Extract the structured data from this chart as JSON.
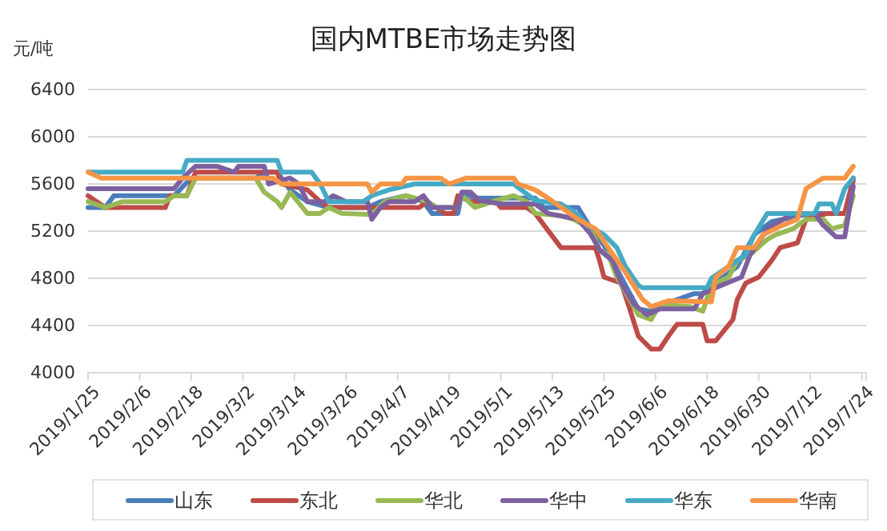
{
  "chart_data": {
    "type": "line",
    "title": "国内MTBE市场走势图",
    "ylabel": "元/吨",
    "ylim": [
      4000,
      6400
    ],
    "yticks": [
      4000,
      4400,
      4800,
      5200,
      5600,
      6000,
      6400
    ],
    "xlim": [
      "2019-01-25",
      "2019-07-25"
    ],
    "xticks": [
      {
        "value": "2019-01-25",
        "label": "2019/1/25"
      },
      {
        "value": "2019-02-06",
        "label": "2019/2/6"
      },
      {
        "value": "2019-02-18",
        "label": "2019/2/18"
      },
      {
        "value": "2019-03-02",
        "label": "2019/3/2"
      },
      {
        "value": "2019-03-14",
        "label": "2019/3/14"
      },
      {
        "value": "2019-03-26",
        "label": "2019/3/26"
      },
      {
        "value": "2019-04-07",
        "label": "2019/4/7"
      },
      {
        "value": "2019-04-19",
        "label": "2019/4/19"
      },
      {
        "value": "2019-05-01",
        "label": "2019/5/1"
      },
      {
        "value": "2019-05-13",
        "label": "2019/5/13"
      },
      {
        "value": "2019-05-25",
        "label": "2019/5/25"
      },
      {
        "value": "2019-06-06",
        "label": "2019/6/6"
      },
      {
        "value": "2019-06-18",
        "label": "2019/6/18"
      },
      {
        "value": "2019-06-30",
        "label": "2019/6/30"
      },
      {
        "value": "2019-07-12",
        "label": "2019/7/12"
      },
      {
        "value": "2019-07-24",
        "label": "2019/7/24"
      }
    ],
    "grid": "y",
    "legend": "bottom",
    "marker": "none",
    "line_style": "solid",
    "series": [
      {
        "name": "山东",
        "color": "#4a7ebb",
        "x": [
          "2019-01-25",
          "2019-01-29",
          "2019-01-31",
          "2019-02-14",
          "2019-02-18",
          "2019-03-05",
          "2019-03-07",
          "2019-03-10",
          "2019-03-13",
          "2019-03-17",
          "2019-03-22",
          "2019-03-31",
          "2019-04-03",
          "2019-04-09",
          "2019-04-13",
          "2019-04-15",
          "2019-04-21",
          "2019-04-22",
          "2019-04-25",
          "2019-05-09",
          "2019-05-11",
          "2019-05-19",
          "2019-05-22",
          "2019-05-25",
          "2019-05-27",
          "2019-05-30",
          "2019-06-02",
          "2019-06-05",
          "2019-06-08",
          "2019-06-15",
          "2019-06-17",
          "2019-06-20",
          "2019-06-25",
          "2019-06-29",
          "2019-07-03",
          "2019-07-12",
          "2019-07-20",
          "2019-07-22"
        ],
        "values": [
          5400,
          5400,
          5500,
          5500,
          5650,
          5650,
          5700,
          5700,
          5550,
          5450,
          5400,
          5400,
          5450,
          5500,
          5450,
          5350,
          5350,
          5530,
          5480,
          5480,
          5400,
          5400,
          5220,
          5080,
          4950,
          4740,
          4540,
          4520,
          4580,
          4670,
          4670,
          4760,
          4900,
          5170,
          5280,
          5350,
          5350,
          5650
        ]
      },
      {
        "name": "东北",
        "color": "#be4b48",
        "x": [
          "2019-01-25",
          "2019-01-29",
          "2019-02-12",
          "2019-02-13",
          "2019-02-17",
          "2019-02-19",
          "2019-03-10",
          "2019-03-11",
          "2019-03-17",
          "2019-03-20",
          "2019-03-22",
          "2019-04-12",
          "2019-04-14",
          "2019-04-18",
          "2019-04-20",
          "2019-04-21",
          "2019-04-24",
          "2019-04-30",
          "2019-05-01",
          "2019-05-07",
          "2019-05-09",
          "2019-05-15",
          "2019-05-23",
          "2019-05-24",
          "2019-05-25",
          "2019-05-29",
          "2019-05-31",
          "2019-06-02",
          "2019-06-05",
          "2019-06-07",
          "2019-06-09",
          "2019-06-11",
          "2019-06-17",
          "2019-06-18",
          "2019-06-20",
          "2019-06-22",
          "2019-06-24",
          "2019-06-25",
          "2019-06-27",
          "2019-06-30",
          "2019-07-03",
          "2019-07-05",
          "2019-07-09",
          "2019-07-11",
          "2019-07-16",
          "2019-07-20",
          "2019-07-22"
        ],
        "values": [
          5500,
          5400,
          5400,
          5500,
          5500,
          5700,
          5700,
          5600,
          5550,
          5450,
          5400,
          5400,
          5450,
          5350,
          5350,
          5500,
          5450,
          5450,
          5400,
          5400,
          5350,
          5060,
          5060,
          4950,
          4810,
          4760,
          4540,
          4310,
          4200,
          4200,
          4310,
          4410,
          4410,
          4270,
          4270,
          4360,
          4450,
          4620,
          4760,
          4810,
          4950,
          5060,
          5100,
          5300,
          5350,
          5350,
          5630
        ]
      },
      {
        "name": "华北",
        "color": "#98b954",
        "x": [
          "2019-01-25",
          "2019-01-29",
          "2019-02-02",
          "2019-02-12",
          "2019-02-14",
          "2019-02-17",
          "2019-02-19",
          "2019-03-05",
          "2019-03-07",
          "2019-03-10",
          "2019-03-11",
          "2019-03-13",
          "2019-03-17",
          "2019-03-20",
          "2019-03-22",
          "2019-03-25",
          "2019-04-01",
          "2019-04-04",
          "2019-04-09",
          "2019-04-14",
          "2019-04-16",
          "2019-04-21",
          "2019-04-22",
          "2019-04-25",
          "2019-04-30",
          "2019-05-04",
          "2019-05-07",
          "2019-05-09",
          "2019-05-15",
          "2019-05-18",
          "2019-05-22",
          "2019-05-24",
          "2019-05-26",
          "2019-05-28",
          "2019-05-31",
          "2019-06-02",
          "2019-06-05",
          "2019-06-07",
          "2019-06-14",
          "2019-06-17",
          "2019-06-19",
          "2019-06-23",
          "2019-06-25",
          "2019-06-28",
          "2019-07-02",
          "2019-07-04",
          "2019-07-08",
          "2019-07-11",
          "2019-07-15",
          "2019-07-17",
          "2019-07-20",
          "2019-07-22"
        ],
        "values": [
          5450,
          5400,
          5450,
          5450,
          5500,
          5500,
          5650,
          5650,
          5530,
          5450,
          5400,
          5530,
          5350,
          5350,
          5400,
          5350,
          5340,
          5450,
          5500,
          5450,
          5400,
          5400,
          5500,
          5400,
          5460,
          5500,
          5450,
          5350,
          5330,
          5300,
          5220,
          5040,
          5000,
          4810,
          4620,
          4490,
          4450,
          4580,
          4560,
          4520,
          4740,
          4810,
          4950,
          5000,
          5130,
          5170,
          5220,
          5300,
          5300,
          5220,
          5250,
          5500
        ]
      },
      {
        "name": "华中",
        "color": "#7d60a0",
        "x": [
          "2019-01-25",
          "2019-02-14",
          "2019-02-16",
          "2019-02-19",
          "2019-02-24",
          "2019-02-28",
          "2019-03-01",
          "2019-03-07",
          "2019-03-08",
          "2019-03-13",
          "2019-03-15",
          "2019-03-17",
          "2019-03-21",
          "2019-03-23",
          "2019-03-26",
          "2019-03-31",
          "2019-04-01",
          "2019-04-03",
          "2019-04-05",
          "2019-04-11",
          "2019-04-13",
          "2019-04-14",
          "2019-04-15",
          "2019-04-21",
          "2019-04-22",
          "2019-04-24",
          "2019-04-26",
          "2019-05-01",
          "2019-05-09",
          "2019-05-12",
          "2019-05-19",
          "2019-05-22",
          "2019-05-24",
          "2019-05-27",
          "2019-05-29",
          "2019-06-01",
          "2019-06-04",
          "2019-06-07",
          "2019-06-15",
          "2019-06-17",
          "2019-06-20",
          "2019-06-26",
          "2019-06-28",
          "2019-07-02",
          "2019-07-08",
          "2019-07-13",
          "2019-07-15",
          "2019-07-18",
          "2019-07-20",
          "2019-07-22"
        ],
        "values": [
          5560,
          5560,
          5650,
          5750,
          5750,
          5700,
          5750,
          5750,
          5600,
          5650,
          5600,
          5450,
          5450,
          5500,
          5450,
          5450,
          5300,
          5400,
          5450,
          5450,
          5500,
          5450,
          5400,
          5400,
          5530,
          5530,
          5460,
          5430,
          5430,
          5350,
          5300,
          5170,
          5040,
          4950,
          4760,
          4580,
          4490,
          4540,
          4540,
          4670,
          4720,
          4810,
          5000,
          5220,
          5350,
          5350,
          5250,
          5150,
          5150,
          5580
        ]
      },
      {
        "name": "华东",
        "color": "#46aac5",
        "x": [
          "2019-01-25",
          "2019-02-16",
          "2019-02-17",
          "2019-03-10",
          "2019-03-11",
          "2019-03-18",
          "2019-03-20",
          "2019-03-22",
          "2019-03-30",
          "2019-04-01",
          "2019-04-05",
          "2019-04-11",
          "2019-04-22",
          "2019-05-04",
          "2019-05-09",
          "2019-05-15",
          "2019-05-19",
          "2019-05-21",
          "2019-05-25",
          "2019-05-28",
          "2019-05-30",
          "2019-06-02",
          "2019-06-03",
          "2019-06-18",
          "2019-06-19",
          "2019-06-23",
          "2019-06-27",
          "2019-06-29",
          "2019-07-02",
          "2019-07-13",
          "2019-07-14",
          "2019-07-17",
          "2019-07-18",
          "2019-07-20",
          "2019-07-22"
        ],
        "values": [
          5700,
          5700,
          5800,
          5800,
          5700,
          5700,
          5600,
          5450,
          5450,
          5500,
          5550,
          5600,
          5600,
          5600,
          5460,
          5430,
          5340,
          5250,
          5170,
          5060,
          4900,
          4740,
          4720,
          4720,
          4800,
          4900,
          5000,
          5170,
          5350,
          5350,
          5430,
          5430,
          5350,
          5560,
          5650
        ]
      },
      {
        "name": "华南",
        "color": "#f69546",
        "x": [
          "2019-01-25",
          "2019-01-28",
          "2019-03-09",
          "2019-03-11",
          "2019-03-31",
          "2019-04-01",
          "2019-04-03",
          "2019-04-08",
          "2019-04-09",
          "2019-04-17",
          "2019-04-19",
          "2019-04-23",
          "2019-05-04",
          "2019-05-05",
          "2019-05-09",
          "2019-05-12",
          "2019-05-19",
          "2019-05-23",
          "2019-05-26",
          "2019-05-30",
          "2019-06-03",
          "2019-06-05",
          "2019-06-09",
          "2019-06-19",
          "2019-06-20",
          "2019-06-23",
          "2019-06-25",
          "2019-06-29",
          "2019-07-01",
          "2019-07-05",
          "2019-07-09",
          "2019-07-11",
          "2019-07-15",
          "2019-07-20",
          "2019-07-22"
        ],
        "values": [
          5700,
          5650,
          5650,
          5600,
          5600,
          5530,
          5600,
          5600,
          5650,
          5650,
          5600,
          5650,
          5650,
          5600,
          5550,
          5480,
          5300,
          5220,
          5060,
          4850,
          4620,
          4560,
          4610,
          4600,
          4810,
          4900,
          5060,
          5060,
          5170,
          5240,
          5300,
          5560,
          5650,
          5650,
          5750
        ]
      }
    ]
  }
}
